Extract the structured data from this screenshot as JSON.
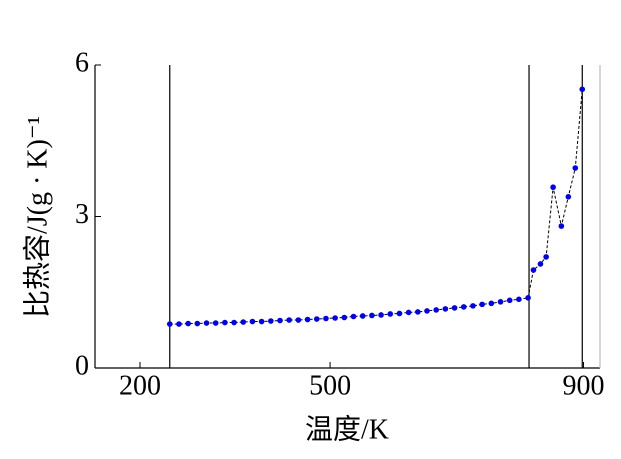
{
  "chart_data": {
    "type": "line",
    "x_label": "温度/K",
    "y_label": "比热容/J(g · K)⁻¹",
    "xlim": [
      129,
      926
    ],
    "ylim": [
      0,
      6
    ],
    "xticks": [
      200,
      500,
      900
    ],
    "yticks": [
      0,
      3,
      6
    ],
    "vlines": [
      247,
      814,
      898
    ],
    "series": [
      {
        "color": "#0000ee",
        "line_color": "#000000",
        "x": [
          247,
          261.5,
          276,
          290.5,
          305,
          319.5,
          334,
          348.5,
          363,
          377.5,
          392,
          406.5,
          421,
          435.5,
          450,
          464.5,
          479,
          493.5,
          508,
          522.5,
          537,
          551.5,
          566,
          580.5,
          595,
          609.5,
          624,
          638.5,
          653,
          667.5,
          682,
          696.5,
          711,
          725.5,
          740,
          754.5,
          769,
          783.5,
          798,
          812.5,
          821,
          832,
          841,
          852,
          865,
          876,
          887,
          898
        ],
        "values": [
          0.87,
          0.87,
          0.88,
          0.88,
          0.89,
          0.89,
          0.9,
          0.9,
          0.91,
          0.92,
          0.92,
          0.93,
          0.94,
          0.95,
          0.95,
          0.96,
          0.97,
          0.98,
          0.99,
          1.0,
          1.02,
          1.03,
          1.04,
          1.05,
          1.07,
          1.08,
          1.1,
          1.11,
          1.13,
          1.15,
          1.17,
          1.19,
          1.21,
          1.23,
          1.26,
          1.28,
          1.31,
          1.34,
          1.36,
          1.39,
          1.94,
          2.06,
          2.2,
          3.58,
          2.81,
          3.39,
          3.96,
          5.52
        ]
      }
    ]
  }
}
